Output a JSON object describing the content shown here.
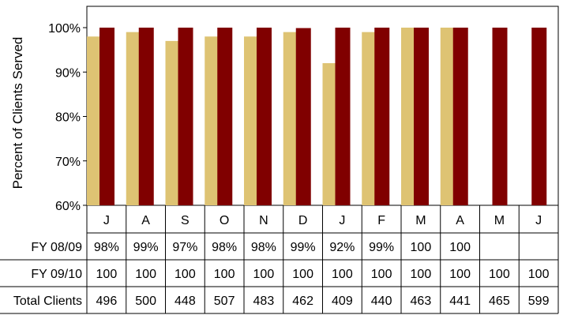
{
  "chart_data": {
    "type": "bar",
    "ylabel": "Percent of Clients Served",
    "ylim": [
      60,
      100
    ],
    "yticks": [
      "60%",
      "70%",
      "80%",
      "90%",
      "100%"
    ],
    "categories": [
      "J",
      "A",
      "S",
      "O",
      "N",
      "D",
      "J",
      "F",
      "M",
      "A",
      "M",
      "J"
    ],
    "series": [
      {
        "name": "FY 08/09",
        "color": "#DEC373",
        "values": [
          98,
          99,
          97,
          98,
          98,
          99,
          92,
          99,
          100,
          100,
          null,
          null
        ]
      },
      {
        "name": "FY 09/10",
        "color": "#800000",
        "values": [
          100,
          100,
          100,
          100,
          100,
          99.9,
          100,
          100,
          100,
          100,
          100,
          100
        ]
      }
    ],
    "table": {
      "rows": [
        {
          "label": "FY 08/09",
          "cells": [
            "98%",
            "99%",
            "97%",
            "98%",
            "98%",
            "99%",
            "92%",
            "99%",
            "100",
            "100",
            "",
            ""
          ]
        },
        {
          "label": "FY 09/10",
          "cells": [
            "100",
            "100",
            "100",
            "100",
            "100",
            "100",
            "100",
            "100",
            "100",
            "100",
            "100",
            "100"
          ]
        },
        {
          "label": "Total Clients",
          "cells": [
            "496",
            "500",
            "448",
            "507",
            "483",
            "462",
            "409",
            "440",
            "463",
            "441",
            "465",
            "599"
          ]
        }
      ]
    }
  }
}
